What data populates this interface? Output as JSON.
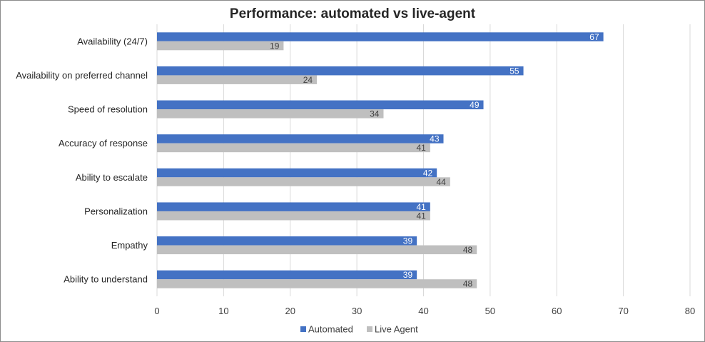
{
  "chart_data": {
    "type": "bar",
    "orientation": "horizontal",
    "title": "Performance: automated vs live-agent",
    "categories": [
      "Availability (24/7)",
      "Availability on preferred channel",
      "Speed of resolution",
      "Accuracy of response",
      "Ability to escalate",
      "Personalization",
      "Empathy",
      "Ability to understand"
    ],
    "series": [
      {
        "name": "Automated",
        "color": "#4472c4",
        "values": [
          67,
          55,
          49,
          43,
          42,
          41,
          39,
          39
        ]
      },
      {
        "name": "Live Agent",
        "color": "#bfbfbf",
        "values": [
          19,
          24,
          34,
          41,
          44,
          41,
          48,
          48
        ]
      }
    ],
    "xlim": [
      0,
      80
    ],
    "xticks": [
      0,
      10,
      20,
      30,
      40,
      50,
      60,
      70,
      80
    ],
    "grid": true,
    "legend": "bottom",
    "data_labels": true
  }
}
